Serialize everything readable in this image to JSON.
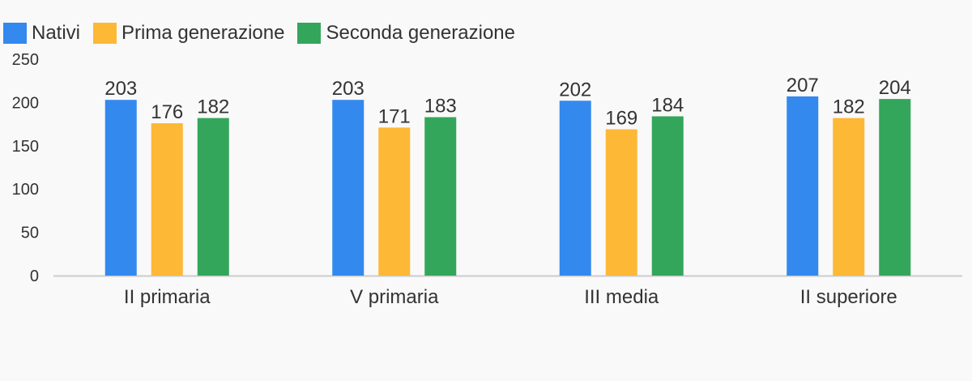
{
  "chart_data": {
    "type": "bar",
    "categories": [
      "II primaria",
      "V primaria",
      "III media",
      "II superiore"
    ],
    "series": [
      {
        "name": "Nativi",
        "color": "#3389ee",
        "values": [
          203,
          203,
          202,
          207
        ]
      },
      {
        "name": "Prima generazione",
        "color": "#fdb836",
        "values": [
          176,
          171,
          169,
          182
        ]
      },
      {
        "name": "Seconda generazione",
        "color": "#33a65b",
        "values": [
          182,
          183,
          184,
          204
        ]
      }
    ],
    "ylim": [
      0,
      250
    ],
    "yticks": [
      "0",
      "50",
      "100",
      "150",
      "200",
      "250"
    ],
    "grid": false,
    "legend_position": "top-left",
    "data_labels": true
  }
}
